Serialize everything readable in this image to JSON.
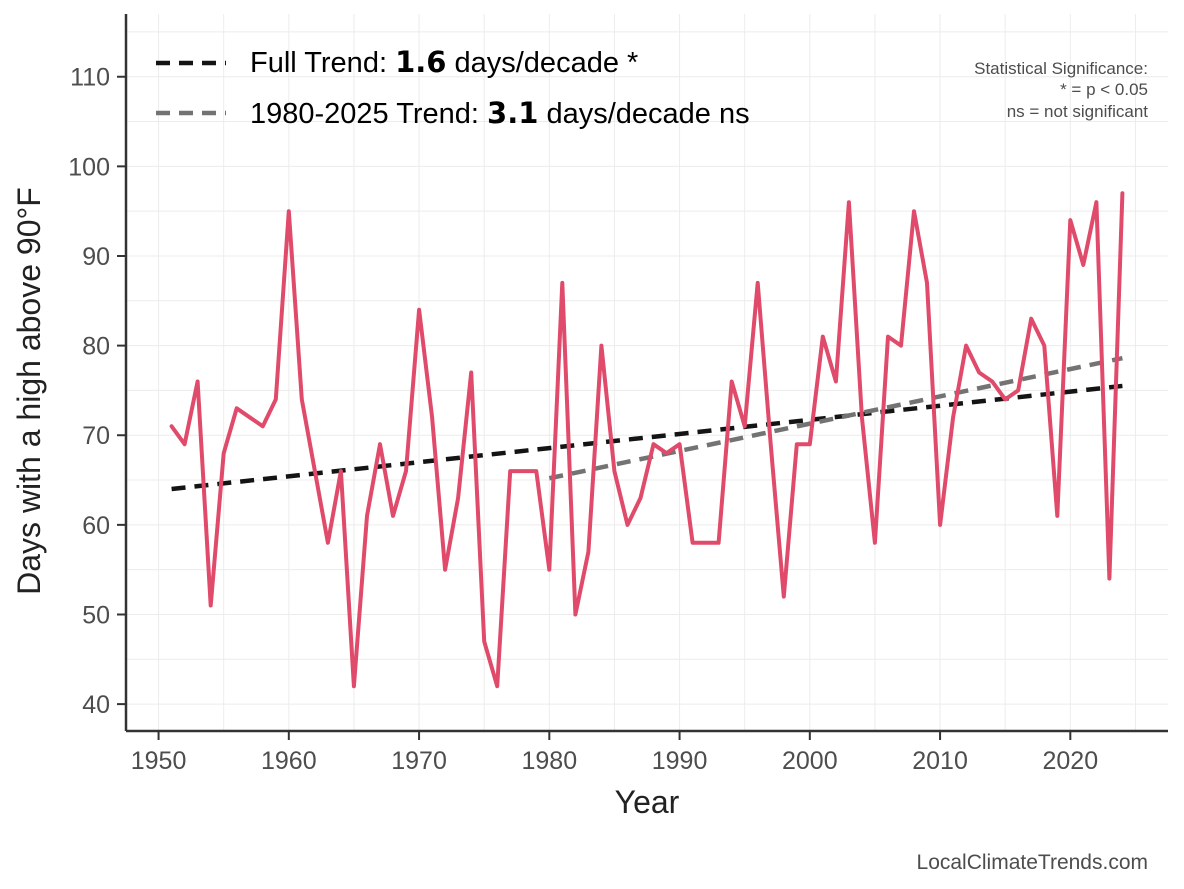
{
  "chart_data": {
    "type": "line",
    "title": "",
    "xlabel": "Year",
    "ylabel": "Days with a high above 90°F",
    "xlim": [
      1947.5,
      2027.5
    ],
    "ylim": [
      37,
      117
    ],
    "x_ticks": [
      1950,
      1960,
      1970,
      1980,
      1990,
      2000,
      2010,
      2020
    ],
    "y_ticks": [
      40,
      50,
      60,
      70,
      80,
      90,
      100,
      110
    ],
    "grid": true,
    "series": [
      {
        "name": "Days with a high above 90°F",
        "color": "#e04a6b",
        "x": [
          1951,
          1952,
          1953,
          1954,
          1955,
          1956,
          1957,
          1958,
          1959,
          1960,
          1961,
          1962,
          1963,
          1964,
          1965,
          1966,
          1967,
          1968,
          1969,
          1970,
          1971,
          1972,
          1973,
          1974,
          1975,
          1976,
          1977,
          1978,
          1979,
          1980,
          1981,
          1982,
          1983,
          1984,
          1985,
          1986,
          1987,
          1988,
          1989,
          1990,
          1991,
          1992,
          1993,
          1994,
          1995,
          1996,
          1997,
          1998,
          1999,
          2000,
          2001,
          2002,
          2003,
          2004,
          2005,
          2006,
          2007,
          2008,
          2009,
          2010,
          2011,
          2012,
          2013,
          2014,
          2015,
          2016,
          2017,
          2018,
          2019,
          2020,
          2021,
          2022,
          2023,
          2024
        ],
        "values": [
          71,
          69,
          76,
          51,
          68,
          73,
          72,
          71,
          74,
          95,
          74,
          66,
          58,
          66,
          42,
          61,
          69,
          61,
          66,
          84,
          72,
          55,
          63,
          77,
          47,
          42,
          66,
          66,
          66,
          55,
          87,
          50,
          57,
          80,
          66,
          60,
          63,
          69,
          68,
          69,
          58,
          58,
          58,
          76,
          71,
          87,
          69,
          52,
          69,
          69,
          81,
          76,
          96,
          72,
          58,
          81,
          80,
          95,
          87,
          60,
          72,
          80,
          77,
          76,
          74,
          75,
          83,
          80,
          61,
          94,
          89,
          96,
          54,
          97
        ]
      }
    ],
    "trends": [
      {
        "name": "Full Trend",
        "color": "#141414",
        "x": [
          1951,
          2024
        ],
        "y": [
          64.0,
          75.5
        ],
        "label_prefix": "Full Trend: ",
        "label_value": "1.6",
        "label_suffix": " days/decade *"
      },
      {
        "name": "1980-2025 Trend",
        "color": "#737373",
        "x": [
          1980,
          2024
        ],
        "y": [
          65.2,
          78.6
        ],
        "label_prefix": "1980-2025 Trend: ",
        "label_value": "3.1",
        "label_suffix": " days/decade ns"
      }
    ],
    "legend_position": "top-left",
    "significance_note": {
      "title": "Statistical Significance:",
      "line1": "* = p < 0.05",
      "line2": "ns = not significant"
    }
  },
  "credit": "LocalClimateTrends.com"
}
